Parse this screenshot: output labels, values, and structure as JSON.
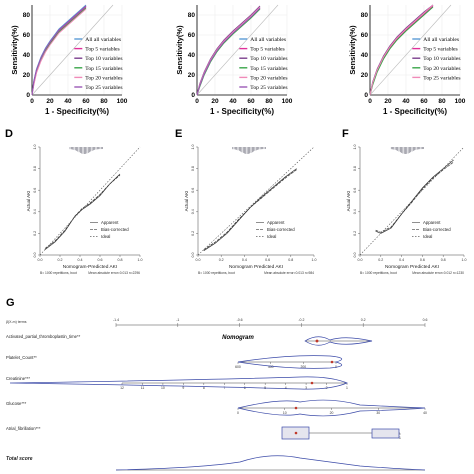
{
  "figure": {
    "label_g": "G"
  },
  "roc_panels": [
    {
      "ylabel": "Sensitivity(%)",
      "xlabel": "1 - Specificity(%)",
      "legend_align": "right"
    },
    {
      "ylabel": "Sensitivity(%)",
      "xlabel": "1 - Specificity(%)",
      "legend_align": "left"
    },
    {
      "ylabel": "Sensitivity(%)",
      "xlabel": "1 - Specificity(%)",
      "legend_align": "left"
    }
  ],
  "calib_panels": [
    {
      "letter": "D",
      "ylabel": "Actual AKI",
      "xlabel": "Nomogram-Predicted AKI",
      "footer_left": "B= 1000 repetitions, boot",
      "footer_right": "Mean absolute error=0.013 n=2296"
    },
    {
      "letter": "E",
      "ylabel": "Actual AKI",
      "xlabel": "Nomogram Predicted AKI",
      "footer_left": "B= 1000 repetitions, boot",
      "footer_right": "Mean absolute error=0.013 n=984"
    },
    {
      "letter": "F",
      "ylabel": "Actual AKI",
      "xlabel": "Nomogram Predicted AKI",
      "footer_left": "B= 1000 repetitions, boot",
      "footer_right": "Mean absolute error=0.012 n=1230"
    }
  ],
  "nomogram": {
    "title": "Nomogram",
    "top_label": "β(X-m) terms",
    "rows": [
      {
        "label": "Activated_partial_thromboplastin_time**",
        "ticks": []
      },
      {
        "label": "Platelet_Count**",
        "ticks": [
          "600",
          "400",
          "200",
          "0"
        ]
      },
      {
        "label": "Creatinine***",
        "ticks": [
          "12",
          "11",
          "10",
          "9",
          "8",
          "7",
          "6",
          "5",
          "4",
          "3",
          "2",
          "1"
        ]
      },
      {
        "label": "Glucose***",
        "ticks": [
          "0",
          "10",
          "20",
          "30",
          "40"
        ]
      },
      {
        "label": "Atrial_fibrillation***",
        "ticks": [
          "0",
          "1"
        ]
      },
      {
        "label": "Total score",
        "ticks": []
      }
    ],
    "top_ticks": [
      "-1.4",
      "-1",
      "-0.6",
      "-0.2",
      "0.2",
      "0.6"
    ]
  },
  "chart_data": [
    {
      "type": "line",
      "panel": "roc-1",
      "xlabel": "1 - Specificity(%)",
      "ylabel": "Sensitivity(%)",
      "xlim": [
        0,
        100
      ],
      "ylim": [
        0,
        90
      ],
      "xticks": [
        "0",
        "20",
        "40",
        "60",
        "80",
        "100"
      ],
      "yticks": [
        "0",
        "20",
        "40",
        "60",
        "80"
      ],
      "legend": [
        "All all variables",
        "Top 5 variables",
        "Top 10 variables",
        "Top 15 variables",
        "Top 20 variables",
        "Top 25 variables"
      ],
      "series": [
        {
          "name": "All all variables",
          "x": [
            0,
            2,
            5,
            10,
            15,
            20,
            25,
            30,
            40,
            50,
            60
          ],
          "y": [
            0,
            14,
            26,
            38,
            47,
            54,
            60,
            66,
            74,
            82,
            90
          ]
        },
        {
          "name": "Top 5 variables",
          "x": [
            0,
            2,
            5,
            10,
            15,
            20,
            25,
            30,
            40,
            50,
            60
          ],
          "y": [
            0,
            12,
            24,
            36,
            45,
            52,
            58,
            64,
            72,
            80,
            88
          ]
        },
        {
          "name": "Top 10 variables",
          "x": [
            0,
            2,
            5,
            10,
            15,
            20,
            25,
            30,
            40,
            50,
            60
          ],
          "y": [
            0,
            13,
            25,
            37,
            46,
            53,
            59,
            65,
            73,
            81,
            89
          ]
        },
        {
          "name": "Top 15 variables",
          "x": [
            0,
            2,
            5,
            10,
            15,
            20,
            25,
            30,
            40,
            50,
            60
          ],
          "y": [
            0,
            11,
            23,
            35,
            44,
            51,
            57,
            63,
            71,
            79,
            87
          ]
        },
        {
          "name": "Top 20 variables",
          "x": [
            0,
            2,
            5,
            10,
            15,
            20,
            25,
            30,
            40,
            50,
            60
          ],
          "y": [
            0,
            10,
            22,
            34,
            43,
            50,
            56,
            62,
            70,
            78,
            86
          ]
        },
        {
          "name": "Top 25 variables",
          "x": [
            0,
            2,
            5,
            10,
            15,
            20,
            25,
            30,
            40,
            50,
            60
          ],
          "y": [
            0,
            13,
            25,
            37,
            46,
            53,
            59,
            65,
            73,
            81,
            89
          ]
        }
      ]
    },
    {
      "type": "line",
      "panel": "roc-2",
      "xlabel": "1 - Specificity(%)",
      "ylabel": "Sensitivity(%)",
      "xlim": [
        0,
        100
      ],
      "ylim": [
        0,
        90
      ],
      "xticks": [
        "0",
        "20",
        "40",
        "60",
        "80",
        "100"
      ],
      "yticks": [
        "0",
        "20",
        "40",
        "60",
        "80"
      ],
      "legend": [
        "All all variables",
        "Top 5 variables",
        "Top 10 variables",
        "Top 15 variables",
        "Top 20 variables",
        "Top 25 variables"
      ],
      "series": [
        {
          "name": "All all variables",
          "x": [
            0,
            3,
            8,
            15,
            22,
            30,
            40,
            50,
            60,
            70
          ],
          "y": [
            0,
            10,
            22,
            35,
            45,
            54,
            63,
            71,
            79,
            88
          ]
        },
        {
          "name": "Top 5 variables",
          "x": [
            0,
            3,
            8,
            15,
            22,
            30,
            40,
            50,
            60,
            70
          ],
          "y": [
            0,
            9,
            21,
            34,
            44,
            53,
            62,
            70,
            78,
            87
          ]
        },
        {
          "name": "Top 10 variables",
          "x": [
            0,
            3,
            8,
            15,
            22,
            30,
            40,
            50,
            60,
            70
          ],
          "y": [
            0,
            11,
            23,
            36,
            46,
            55,
            64,
            72,
            80,
            89
          ]
        },
        {
          "name": "Top 15 variables",
          "x": [
            0,
            3,
            8,
            15,
            22,
            30,
            40,
            50,
            60,
            70
          ],
          "y": [
            0,
            8,
            20,
            33,
            43,
            52,
            61,
            69,
            77,
            86
          ]
        },
        {
          "name": "Top 20 variables",
          "x": [
            0,
            3,
            8,
            15,
            22,
            30,
            40,
            50,
            60,
            70
          ],
          "y": [
            0,
            10,
            22,
            35,
            45,
            54,
            63,
            71,
            79,
            88
          ]
        },
        {
          "name": "Top 25 variables",
          "x": [
            0,
            3,
            8,
            15,
            22,
            30,
            40,
            50,
            60,
            70
          ],
          "y": [
            0,
            9,
            21,
            34,
            44,
            53,
            62,
            70,
            78,
            87
          ]
        }
      ]
    },
    {
      "type": "line",
      "panel": "roc-3",
      "xlabel": "1 - Specificity(%)",
      "ylabel": "Sensitivity(%)",
      "xlim": [
        0,
        100
      ],
      "ylim": [
        0,
        90
      ],
      "xticks": [
        "0",
        "20",
        "40",
        "60",
        "80",
        "100"
      ],
      "yticks": [
        "0",
        "20",
        "40",
        "60",
        "80"
      ],
      "legend": [
        "All all variables",
        "Top 5 variables",
        "Top 10 variables",
        "Top 20 variables",
        "Top 25 variables"
      ],
      "series": [
        {
          "name": "All all variables",
          "x": [
            0,
            3,
            8,
            15,
            22,
            30,
            40,
            50,
            60,
            70
          ],
          "y": [
            0,
            12,
            25,
            38,
            48,
            57,
            66,
            74,
            82,
            90
          ]
        },
        {
          "name": "Top 5 variables",
          "x": [
            0,
            3,
            8,
            15,
            22,
            30,
            40,
            50,
            60,
            70
          ],
          "y": [
            0,
            11,
            24,
            37,
            47,
            56,
            65,
            73,
            81,
            89
          ]
        },
        {
          "name": "Top 10 variables",
          "x": [
            0,
            3,
            8,
            15,
            22,
            30,
            40,
            50,
            60,
            70
          ],
          "y": [
            0,
            13,
            26,
            39,
            49,
            58,
            67,
            75,
            83,
            90
          ]
        },
        {
          "name": "Top 20 variables",
          "x": [
            0,
            3,
            8,
            15,
            22,
            30,
            40,
            50,
            60,
            70
          ],
          "y": [
            0,
            10,
            23,
            36,
            46,
            55,
            64,
            72,
            80,
            88
          ]
        },
        {
          "name": "Top 25 variables",
          "x": [
            0,
            3,
            8,
            15,
            22,
            30,
            40,
            50,
            60,
            70
          ],
          "y": [
            0,
            12,
            25,
            38,
            48,
            57,
            66,
            74,
            82,
            90
          ]
        }
      ]
    },
    {
      "type": "line",
      "panel": "calib-D",
      "xlim": [
        0,
        1
      ],
      "ylim": [
        0,
        1
      ],
      "xticks": [
        "0.0",
        "0.2",
        "0.4",
        "0.6",
        "0.8",
        "1.0"
      ],
      "yticks": [
        "0.0",
        "0.2",
        "0.4",
        "0.6",
        "0.8",
        "1.0"
      ],
      "legend": [
        "Apparent",
        "Bias-corrected",
        "Ideal"
      ],
      "series": [
        {
          "name": "Apparent",
          "x": [
            0.05,
            0.15,
            0.25,
            0.35,
            0.42,
            0.5,
            0.6,
            0.7,
            0.8
          ],
          "y": [
            0.05,
            0.12,
            0.22,
            0.36,
            0.42,
            0.47,
            0.55,
            0.66,
            0.75
          ]
        },
        {
          "name": "Bias-corrected",
          "x": [
            0.05,
            0.15,
            0.25,
            0.35,
            0.42,
            0.5,
            0.6,
            0.7,
            0.8
          ],
          "y": [
            0.06,
            0.13,
            0.23,
            0.36,
            0.43,
            0.48,
            0.56,
            0.66,
            0.74
          ]
        },
        {
          "name": "Ideal",
          "x": [
            0,
            1
          ],
          "y": [
            0,
            1
          ]
        }
      ]
    },
    {
      "type": "line",
      "panel": "calib-E",
      "xlim": [
        0,
        1
      ],
      "ylim": [
        0,
        1
      ],
      "xticks": [
        "0.0",
        "0.2",
        "0.4",
        "0.6",
        "0.8",
        "1.0"
      ],
      "yticks": [
        "0.0",
        "0.2",
        "0.4",
        "0.6",
        "0.8",
        "1.0"
      ],
      "legend": [
        "Apparent",
        "Bias-corrected",
        "Ideal"
      ],
      "series": [
        {
          "name": "Apparent",
          "x": [
            0.05,
            0.15,
            0.25,
            0.35,
            0.45,
            0.55,
            0.65,
            0.75,
            0.85
          ],
          "y": [
            0.04,
            0.11,
            0.2,
            0.32,
            0.44,
            0.54,
            0.63,
            0.72,
            0.8
          ]
        },
        {
          "name": "Bias-corrected",
          "x": [
            0.05,
            0.15,
            0.25,
            0.35,
            0.45,
            0.55,
            0.65,
            0.75,
            0.85
          ],
          "y": [
            0.05,
            0.12,
            0.21,
            0.33,
            0.44,
            0.53,
            0.62,
            0.71,
            0.79
          ]
        },
        {
          "name": "Ideal",
          "x": [
            0,
            1
          ],
          "y": [
            0,
            1
          ]
        }
      ]
    },
    {
      "type": "line",
      "panel": "calib-F",
      "xlim": [
        0,
        1
      ],
      "ylim": [
        0,
        1
      ],
      "xticks": [
        "0.0",
        "0.2",
        "0.4",
        "0.6",
        "0.8",
        "1.0"
      ],
      "yticks": [
        "0.0",
        "0.2",
        "0.4",
        "0.6",
        "0.8",
        "1.0"
      ],
      "legend": [
        "Apparent",
        "Bias-corrected",
        "Ideal"
      ],
      "series": [
        {
          "name": "Apparent",
          "x": [
            0.15,
            0.2,
            0.3,
            0.4,
            0.5,
            0.6,
            0.7,
            0.8,
            0.9
          ],
          "y": [
            0.22,
            0.2,
            0.25,
            0.38,
            0.5,
            0.62,
            0.72,
            0.8,
            0.88
          ]
        },
        {
          "name": "Bias-corrected",
          "x": [
            0.15,
            0.2,
            0.3,
            0.4,
            0.5,
            0.6,
            0.7,
            0.8,
            0.9
          ],
          "y": [
            0.23,
            0.21,
            0.26,
            0.38,
            0.49,
            0.61,
            0.71,
            0.79,
            0.86
          ]
        },
        {
          "name": "Ideal",
          "x": [
            0,
            1
          ],
          "y": [
            0,
            1
          ]
        }
      ]
    }
  ],
  "colors": {
    "roc": [
      "#5b9bd5",
      "#e0309a",
      "#7b3f8c",
      "#3aa64a",
      "#f08ab8",
      "#9b59b6"
    ],
    "calib_line": "#333333",
    "nomogram_blue": "#3b4aa8"
  }
}
